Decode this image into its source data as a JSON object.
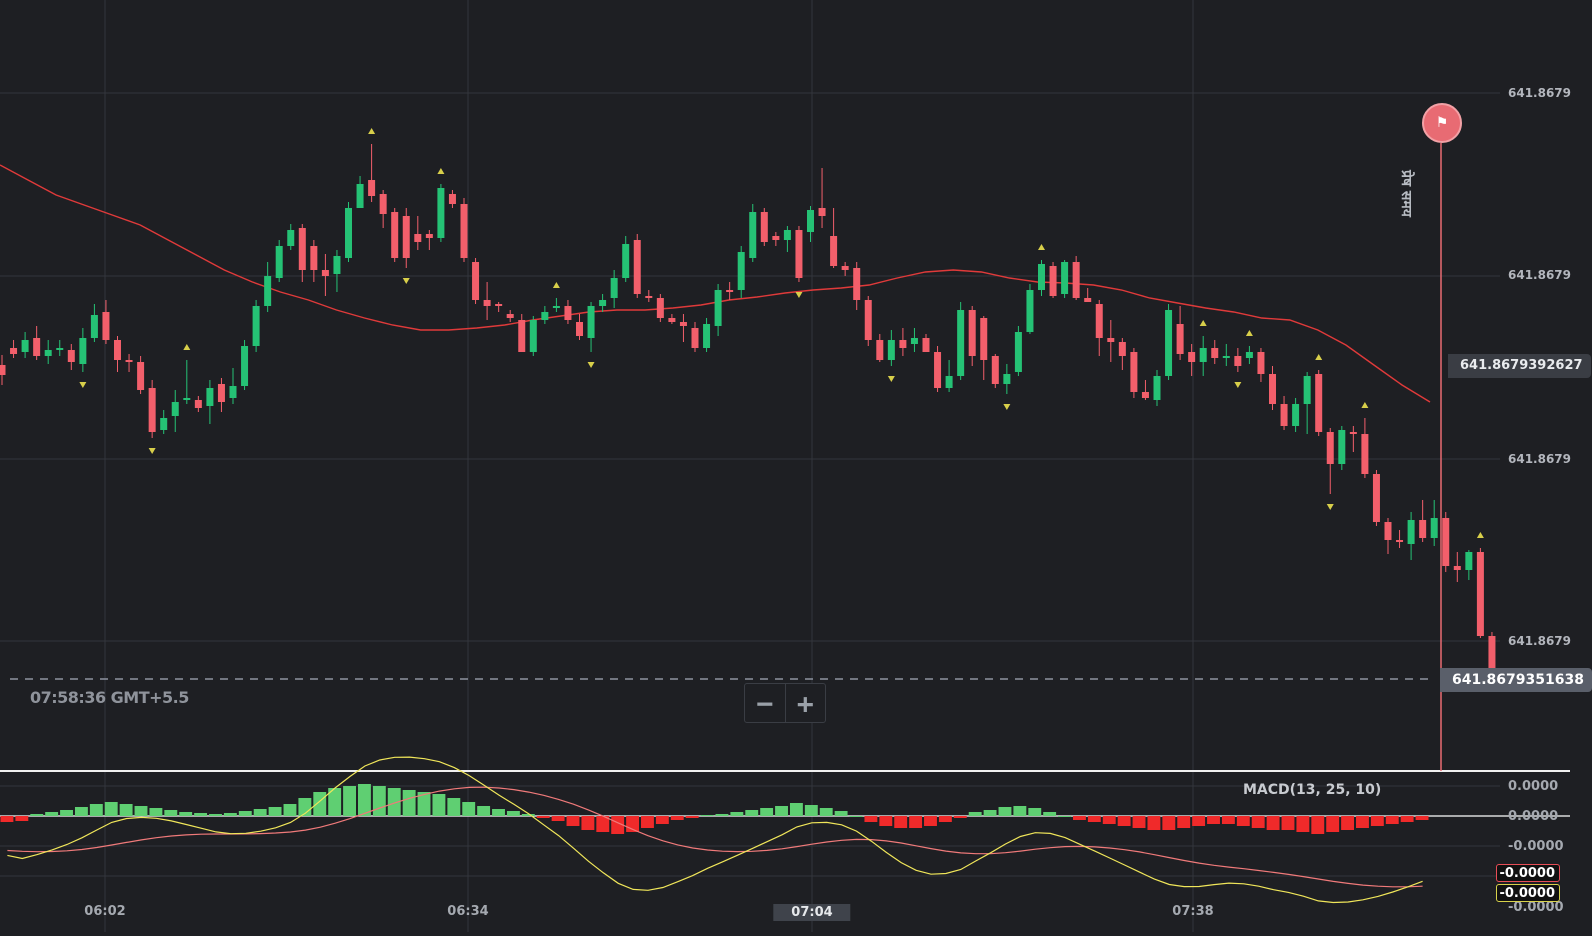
{
  "chart": {
    "price_axis_labels": [
      "641.8679",
      "641.8679",
      "641.8679",
      "641.8679"
    ],
    "crosshair_price": "641.8679392627",
    "current_price": "641.8679351638",
    "time_readout": "07:58:36 GMT+5.5",
    "expiry_label": "प्रेष समय",
    "zoom_out_icon": "minus-icon",
    "zoom_in_icon": "plus-icon",
    "colors": {
      "background": "#1e1f23",
      "up_candle": "#25c275",
      "down_candle": "#f25f6b",
      "ma_line": "#e03a3a",
      "signal_marker": "#d8cf4a",
      "macd_pos": "#5fcf72",
      "macd_neg": "#f02a2a",
      "macd_line": "#f0e65a",
      "signal_line": "#f07a7a"
    }
  },
  "macd": {
    "label": "MACD(13, 25, 10)",
    "axis_labels": [
      "0.0000",
      "0.0000",
      "-0.0000",
      "-0.0000"
    ],
    "tag_macd": "-0.0000",
    "tag_signal": "-0.0000"
  },
  "time_axis": {
    "labels": [
      "06:02",
      "06:34",
      "07:04",
      "07:38"
    ],
    "active_index": 2
  },
  "chart_data": {
    "type": "candlestick",
    "candles": [
      [
        365,
        375,
        355,
        385
      ],
      [
        348,
        354,
        340,
        358
      ],
      [
        352,
        340,
        332,
        358
      ],
      [
        338,
        356,
        326,
        360
      ],
      [
        356,
        350,
        340,
        364
      ],
      [
        350,
        348,
        340,
        356
      ],
      [
        350,
        362,
        344,
        370
      ],
      [
        364,
        338,
        328,
        372
      ],
      [
        338,
        315,
        304,
        342
      ],
      [
        312,
        340,
        300,
        344
      ],
      [
        340,
        360,
        336,
        372
      ],
      [
        360,
        360,
        354,
        372
      ],
      [
        362,
        390,
        356,
        394
      ],
      [
        388,
        432,
        380,
        438
      ],
      [
        430,
        418,
        410,
        434
      ],
      [
        416,
        402,
        390,
        432
      ],
      [
        400,
        398,
        360,
        404
      ],
      [
        400,
        408,
        396,
        412
      ],
      [
        406,
        388,
        380,
        424
      ],
      [
        384,
        402,
        378,
        412
      ],
      [
        398,
        386,
        368,
        404
      ],
      [
        386,
        346,
        340,
        390
      ],
      [
        346,
        306,
        300,
        352
      ],
      [
        306,
        276,
        262,
        312
      ],
      [
        278,
        246,
        240,
        282
      ],
      [
        246,
        230,
        224,
        250
      ],
      [
        228,
        270,
        224,
        282
      ],
      [
        246,
        270,
        240,
        282
      ],
      [
        270,
        276,
        254,
        296
      ],
      [
        274,
        256,
        250,
        292
      ],
      [
        258,
        208,
        202,
        262
      ],
      [
        208,
        184,
        176,
        208
      ],
      [
        180,
        196,
        144,
        202
      ],
      [
        194,
        214,
        190,
        228
      ],
      [
        212,
        258,
        208,
        262
      ],
      [
        216,
        258,
        208,
        268
      ],
      [
        234,
        242,
        216,
        250
      ],
      [
        234,
        238,
        230,
        250
      ],
      [
        238,
        188,
        184,
        242
      ],
      [
        194,
        204,
        190,
        208
      ],
      [
        204,
        258,
        198,
        262
      ],
      [
        262,
        300,
        258,
        304
      ],
      [
        300,
        306,
        282,
        320
      ],
      [
        304,
        304,
        302,
        312
      ],
      [
        314,
        318,
        310,
        322
      ],
      [
        320,
        352,
        314,
        352
      ],
      [
        352,
        320,
        316,
        356
      ],
      [
        320,
        312,
        306,
        324
      ],
      [
        308,
        306,
        298,
        312
      ],
      [
        306,
        320,
        300,
        324
      ],
      [
        322,
        336,
        314,
        340
      ],
      [
        338,
        306,
        302,
        352
      ],
      [
        306,
        300,
        294,
        312
      ],
      [
        298,
        278,
        270,
        308
      ],
      [
        278,
        244,
        236,
        282
      ],
      [
        240,
        294,
        234,
        298
      ],
      [
        296,
        296,
        290,
        302
      ],
      [
        298,
        318,
        294,
        322
      ],
      [
        318,
        322,
        314,
        324
      ],
      [
        322,
        326,
        314,
        342
      ],
      [
        328,
        348,
        322,
        352
      ],
      [
        348,
        324,
        318,
        352
      ],
      [
        326,
        290,
        284,
        336
      ],
      [
        290,
        292,
        282,
        300
      ],
      [
        290,
        252,
        246,
        298
      ],
      [
        258,
        212,
        204,
        262
      ],
      [
        212,
        242,
        208,
        246
      ],
      [
        236,
        240,
        232,
        246
      ],
      [
        240,
        230,
        226,
        252
      ],
      [
        230,
        278,
        226,
        282
      ],
      [
        232,
        210,
        206,
        242
      ],
      [
        208,
        216,
        168,
        228
      ],
      [
        236,
        266,
        208,
        268
      ],
      [
        266,
        270,
        262,
        276
      ],
      [
        268,
        300,
        262,
        310
      ],
      [
        300,
        340,
        296,
        346
      ],
      [
        340,
        360,
        334,
        362
      ],
      [
        360,
        340,
        330,
        366
      ],
      [
        340,
        348,
        328,
        356
      ],
      [
        344,
        338,
        328,
        352
      ],
      [
        338,
        352,
        334,
        352
      ],
      [
        352,
        388,
        346,
        392
      ],
      [
        388,
        376,
        360,
        392
      ],
      [
        376,
        310,
        302,
        380
      ],
      [
        310,
        356,
        306,
        366
      ],
      [
        318,
        360,
        316,
        380
      ],
      [
        356,
        384,
        354,
        388
      ],
      [
        384,
        374,
        364,
        394
      ],
      [
        372,
        332,
        326,
        376
      ],
      [
        332,
        290,
        284,
        334
      ],
      [
        290,
        264,
        260,
        296
      ],
      [
        266,
        296,
        262,
        298
      ],
      [
        294,
        262,
        260,
        298
      ],
      [
        262,
        298,
        256,
        300
      ],
      [
        298,
        302,
        288,
        302
      ],
      [
        304,
        338,
        300,
        356
      ],
      [
        338,
        342,
        320,
        362
      ],
      [
        342,
        356,
        338,
        370
      ],
      [
        352,
        392,
        348,
        398
      ],
      [
        392,
        398,
        380,
        400
      ],
      [
        400,
        376,
        370,
        406
      ],
      [
        376,
        310,
        304,
        380
      ],
      [
        324,
        354,
        306,
        360
      ],
      [
        352,
        362,
        344,
        376
      ],
      [
        362,
        348,
        336,
        376
      ],
      [
        348,
        358,
        340,
        364
      ],
      [
        358,
        356,
        344,
        366
      ],
      [
        356,
        366,
        348,
        372
      ],
      [
        358,
        352,
        346,
        364
      ],
      [
        352,
        374,
        348,
        382
      ],
      [
        374,
        404,
        366,
        410
      ],
      [
        404,
        426,
        396,
        430
      ],
      [
        426,
        404,
        398,
        432
      ],
      [
        404,
        376,
        372,
        434
      ],
      [
        374,
        432,
        370,
        436
      ],
      [
        432,
        464,
        428,
        494
      ],
      [
        464,
        430,
        426,
        470
      ],
      [
        432,
        434,
        426,
        452
      ],
      [
        434,
        474,
        418,
        478
      ],
      [
        474,
        522,
        470,
        526
      ],
      [
        522,
        540,
        518,
        554
      ],
      [
        540,
        542,
        530,
        548
      ],
      [
        544,
        520,
        512,
        560
      ],
      [
        520,
        538,
        500,
        542
      ],
      [
        538,
        518,
        500,
        546
      ],
      [
        518,
        566,
        512,
        572
      ],
      [
        566,
        570,
        552,
        582
      ],
      [
        570,
        552,
        550,
        580
      ],
      [
        552,
        636,
        548,
        638
      ],
      [
        636,
        680,
        632,
        684
      ]
    ],
    "ma": [
      165,
      180,
      195,
      205,
      215,
      225,
      240,
      255,
      270,
      282,
      292,
      300,
      310,
      318,
      325,
      330,
      330,
      328,
      325,
      320,
      316,
      312,
      310,
      310,
      308,
      305,
      300,
      297,
      293,
      290,
      288,
      285,
      278,
      272,
      270,
      272,
      278,
      282,
      283,
      285,
      290,
      298,
      303,
      308,
      312,
      318,
      320,
      330,
      345,
      365,
      385,
      402
    ],
    "macd_histogram": [
      -6,
      -5,
      2,
      4,
      6,
      9,
      12,
      14,
      12,
      10,
      8,
      6,
      4,
      3,
      2,
      3,
      5,
      7,
      9,
      12,
      18,
      24,
      28,
      30,
      32,
      30,
      28,
      26,
      24,
      22,
      18,
      14,
      10,
      7,
      5,
      2,
      -2,
      -5,
      -10,
      -14,
      -16,
      -18,
      -16,
      -12,
      -8,
      -4,
      -2,
      1,
      2,
      4,
      6,
      8,
      10,
      13,
      11,
      8,
      5,
      0,
      -6,
      -10,
      -12,
      -12,
      -10,
      -6,
      -2,
      4,
      6,
      9,
      10,
      8,
      4,
      0,
      -4,
      -6,
      -8,
      -10,
      -12,
      -14,
      -14,
      -12,
      -10,
      -8,
      -8,
      -10,
      -12,
      -14,
      -14,
      -16,
      -18,
      -16,
      -14,
      -12,
      -10,
      -8,
      -6,
      -4
    ]
  }
}
